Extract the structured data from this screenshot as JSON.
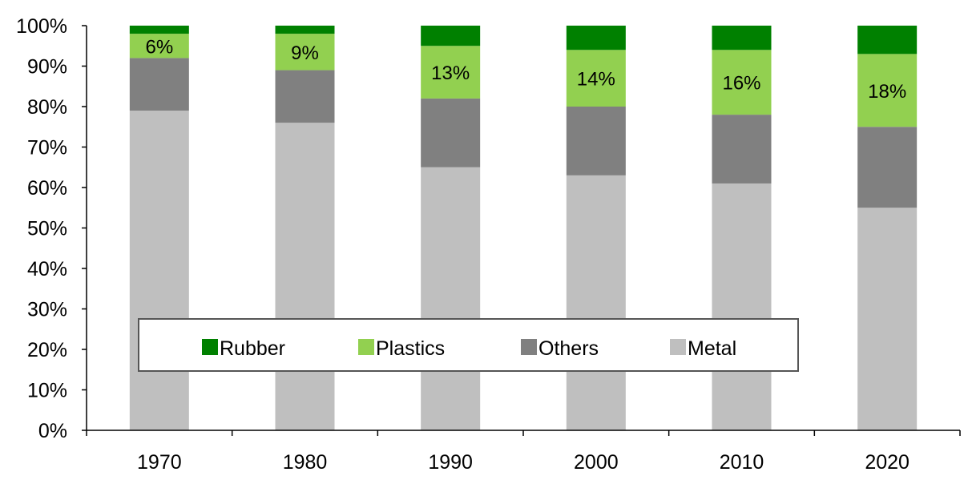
{
  "chart_data": {
    "type": "bar",
    "stacked": true,
    "title": "",
    "xlabel": "",
    "ylabel": "",
    "categories": [
      "1970",
      "1980",
      "1990",
      "2000",
      "2010",
      "2020"
    ],
    "ylim": [
      0,
      100
    ],
    "yticks": [
      "0%",
      "10%",
      "20%",
      "30%",
      "40%",
      "50%",
      "60%",
      "70%",
      "80%",
      "90%",
      "100%"
    ],
    "series": [
      {
        "name": "Metal",
        "color": "#bfbfbf",
        "values": [
          79,
          76,
          65,
          63,
          61,
          55
        ]
      },
      {
        "name": "Others",
        "color": "#808080",
        "values": [
          13,
          13,
          17,
          17,
          17,
          20
        ]
      },
      {
        "name": "Plastics",
        "color": "#92d050",
        "values": [
          6,
          9,
          13,
          14,
          16,
          18
        ],
        "data_labels": [
          "6%",
          "9%",
          "13%",
          "14%",
          "16%",
          "18%"
        ]
      },
      {
        "name": "Rubber",
        "color": "#008000",
        "values": [
          2,
          2,
          5,
          6,
          6,
          7
        ]
      }
    ],
    "legend": {
      "placement": "bottom-center",
      "order": [
        "Rubber",
        "Plastics",
        "Others",
        "Metal"
      ]
    },
    "grid": false
  }
}
